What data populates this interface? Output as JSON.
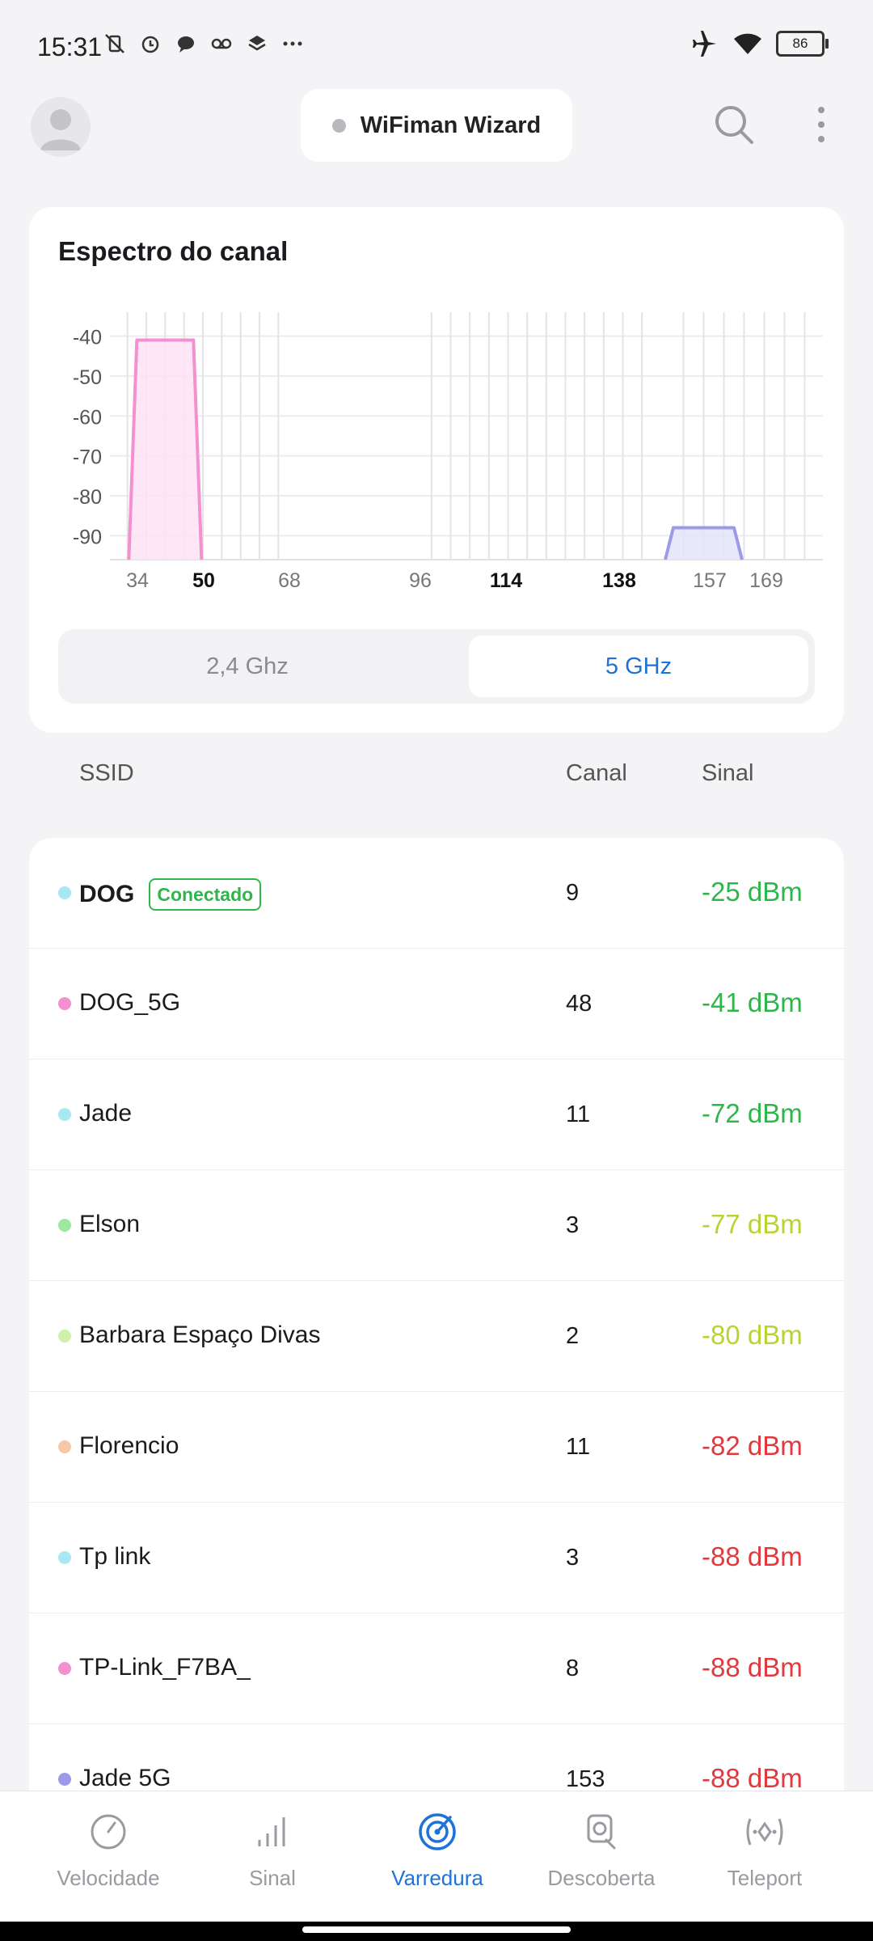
{
  "status_bar": {
    "time": "15:31",
    "battery": "86"
  },
  "header": {
    "wizard_label": "WiFiman Wizard"
  },
  "spectrum": {
    "title": "Espectro do canal",
    "band_options": [
      "2,4 Ghz",
      "5 GHz"
    ],
    "selected_band": "5 GHz"
  },
  "chart_data": {
    "type": "area",
    "title": "Espectro do canal",
    "xlabel": "",
    "ylabel": "",
    "y_ticks": [
      -40,
      -50,
      -60,
      -70,
      -80,
      -90
    ],
    "ylim": [
      -96,
      -34
    ],
    "x_tick_labels": [
      {
        "label": "34",
        "bold": false
      },
      {
        "label": "50",
        "bold": true
      },
      {
        "label": "68",
        "bold": false
      },
      {
        "label": "96",
        "bold": false
      },
      {
        "label": "114",
        "bold": true
      },
      {
        "label": "138",
        "bold": true
      },
      {
        "label": "157",
        "bold": false
      },
      {
        "label": "169",
        "bold": false
      }
    ],
    "series": [
      {
        "channel_range": [
          36,
          48
        ],
        "signal": -41,
        "color": "#f48fd0",
        "fill": "#fde3f4"
      },
      {
        "channel_range": [
          149,
          161
        ],
        "signal": -88,
        "color": "#9b9bea",
        "fill": "#e4e4fa"
      }
    ],
    "grid": true
  },
  "table": {
    "headers": {
      "ssid": "SSID",
      "canal": "Canal",
      "sinal": "Sinal"
    },
    "connected_label": "Conectado",
    "rows": [
      {
        "ssid": "DOG",
        "canal": "9",
        "sinal": "-25 dBm",
        "dot_color": "#a8e8f3",
        "signal_color": "#2fb64a",
        "connected": true
      },
      {
        "ssid": "DOG_5G",
        "canal": "48",
        "sinal": "-41 dBm",
        "dot_color": "#f48fd0",
        "signal_color": "#2fb64a",
        "connected": false
      },
      {
        "ssid": "Jade",
        "canal": "11",
        "sinal": "-72 dBm",
        "dot_color": "#a8e8f3",
        "signal_color": "#2fb64a",
        "connected": false
      },
      {
        "ssid": "Elson",
        "canal": "3",
        "sinal": "-77 dBm",
        "dot_color": "#9be89e",
        "signal_color": "#b8d334",
        "connected": false
      },
      {
        "ssid": "Barbara Espaço Divas",
        "canal": "2",
        "sinal": "-80 dBm",
        "dot_color": "#cdf2a8",
        "signal_color": "#b8d334",
        "connected": false
      },
      {
        "ssid": "Florencio",
        "canal": "11",
        "sinal": "-82 dBm",
        "dot_color": "#f6c8a8",
        "signal_color": "#e0393e",
        "connected": false
      },
      {
        "ssid": "Tp link",
        "canal": "3",
        "sinal": "-88 dBm",
        "dot_color": "#a8e8f3",
        "signal_color": "#e0393e",
        "connected": false
      },
      {
        "ssid": "TP-Link_F7BA_",
        "canal": "8",
        "sinal": "-88 dBm",
        "dot_color": "#f48fd0",
        "signal_color": "#e0393e",
        "connected": false
      },
      {
        "ssid": "Jade 5G",
        "canal": "153",
        "sinal": "-88 dBm",
        "dot_color": "#9b9bea",
        "signal_color": "#e0393e",
        "connected": false
      }
    ]
  },
  "bottom_nav": {
    "items": [
      {
        "label": "Velocidade",
        "icon": "speedometer-icon",
        "active": false
      },
      {
        "label": "Sinal",
        "icon": "signal-bars-icon",
        "active": false
      },
      {
        "label": "Varredura",
        "icon": "radar-icon",
        "active": true
      },
      {
        "label": "Descoberta",
        "icon": "discovery-icon",
        "active": false
      },
      {
        "label": "Teleport",
        "icon": "teleport-icon",
        "active": false
      }
    ]
  },
  "colors": {
    "accent": "#1e73d8",
    "good": "#2fb64a",
    "fair": "#b8d334",
    "poor": "#e0393e"
  }
}
